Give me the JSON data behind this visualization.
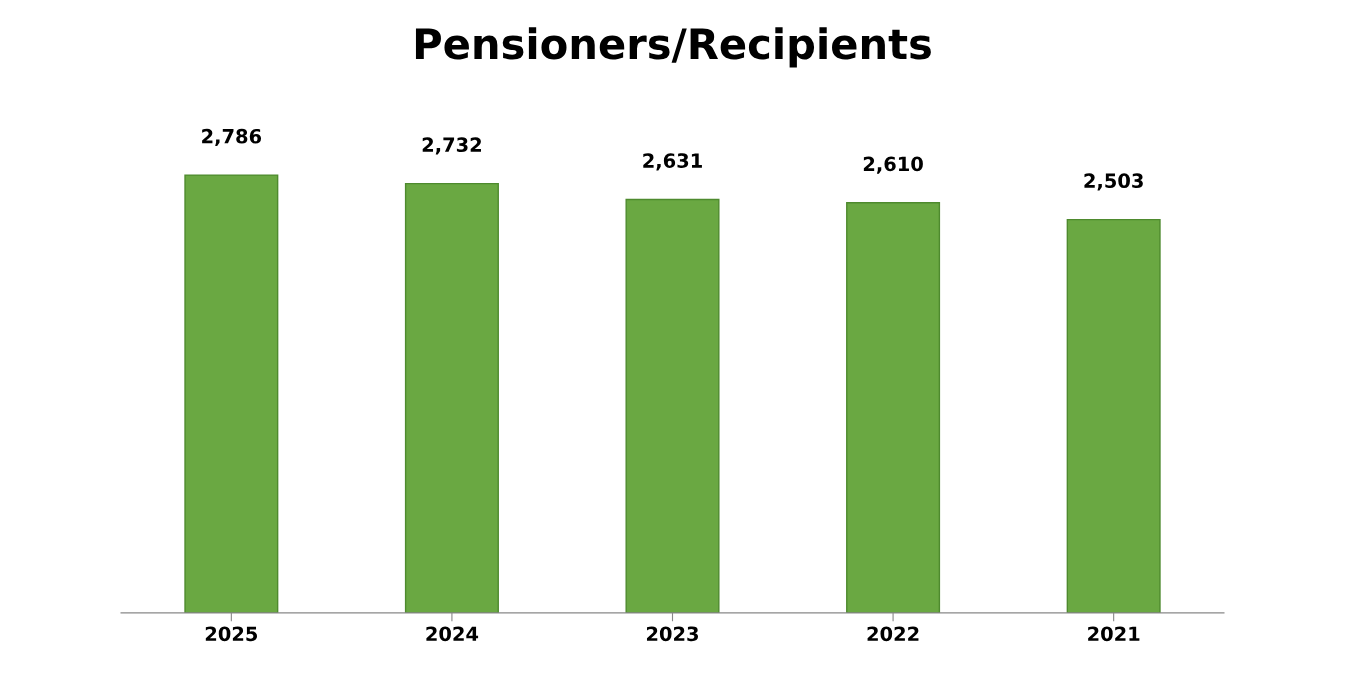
{
  "chart_data": {
    "type": "bar",
    "title": "Pensioners/Recipients",
    "categories": [
      "2025",
      "2024",
      "2023",
      "2022",
      "2021"
    ],
    "values": [
      2786,
      2732,
      2631,
      2610,
      2503
    ],
    "color": "#6aa842",
    "value_labels": [
      "2,786",
      "2,732",
      "2,631",
      "2,610",
      "2,503"
    ],
    "tick_labels": "x"
  }
}
